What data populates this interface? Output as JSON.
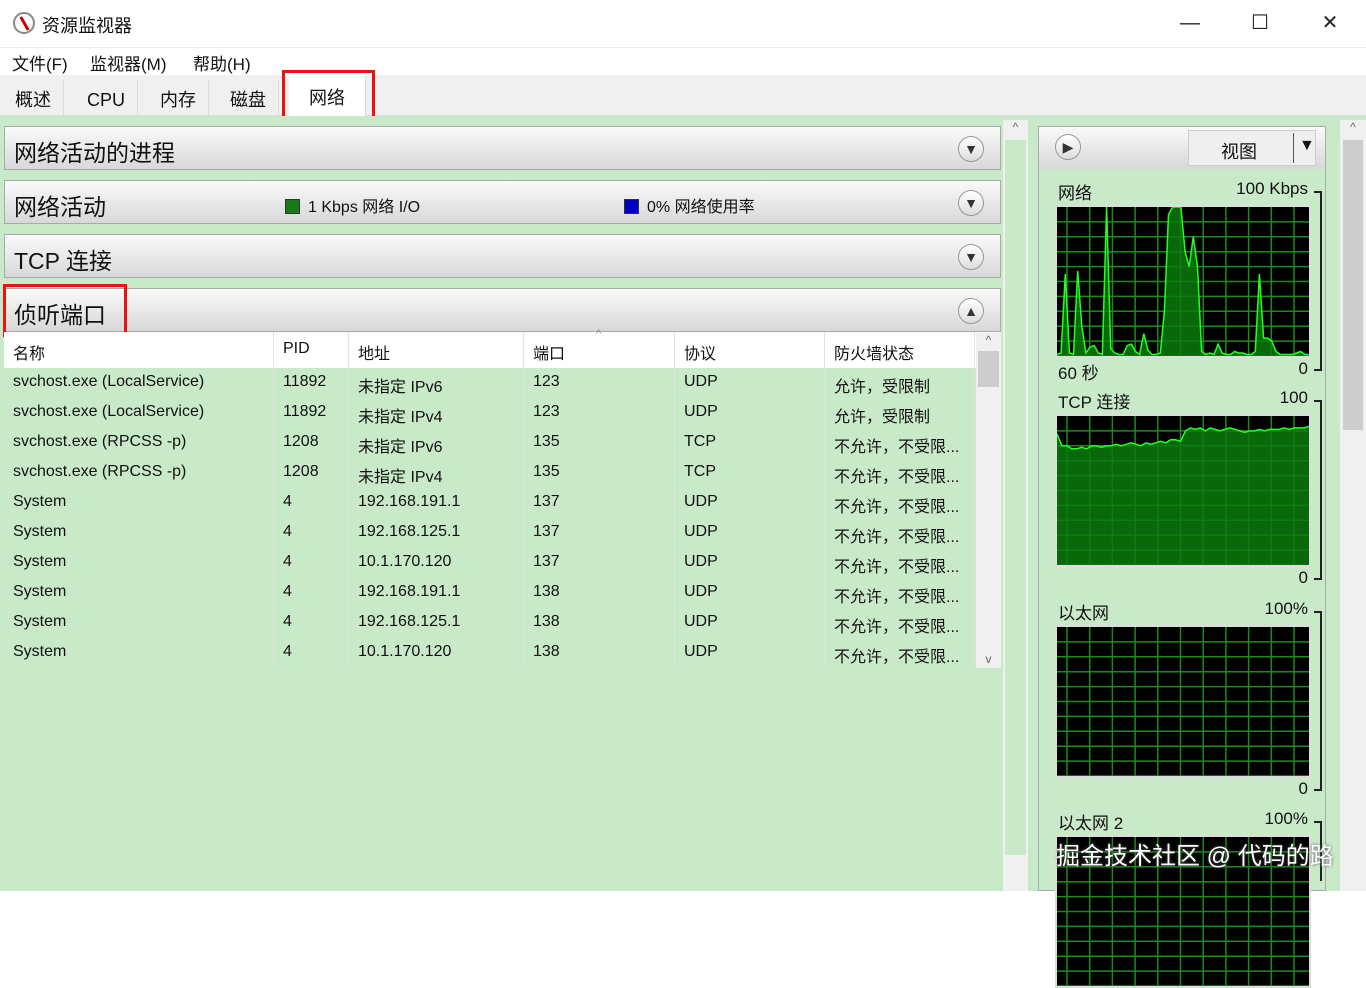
{
  "window": {
    "title": "资源监视器",
    "minimize": "—",
    "maximize": "☐",
    "close": "✕"
  },
  "menu": [
    "文件(F)",
    "监视器(M)",
    "帮助(H)"
  ],
  "tabs": [
    {
      "label": "概述"
    },
    {
      "label": "CPU"
    },
    {
      "label": "内存"
    },
    {
      "label": "磁盘"
    },
    {
      "label": "网络",
      "active": true
    }
  ],
  "sections": {
    "processes": {
      "title": "网络活动的进程"
    },
    "activity": {
      "title": "网络活动",
      "legend1": "1 Kbps 网络 I/O",
      "legend1_color": "#1a7a1a",
      "legend2": "0% 网络使用率",
      "legend2_color": "#0000c0"
    },
    "tcp": {
      "title": "TCP 连接"
    },
    "listening": {
      "title": "侦听端口"
    }
  },
  "table": {
    "columns": [
      "名称",
      "PID",
      "地址",
      "端口",
      "协议",
      "防火墙状态"
    ],
    "sort_column": "端口",
    "rows": [
      [
        "svchost.exe (LocalService)",
        "11892",
        "未指定 IPv6",
        "123",
        "UDP",
        "允许，受限制"
      ],
      [
        "svchost.exe (LocalService)",
        "11892",
        "未指定 IPv4",
        "123",
        "UDP",
        "允许，受限制"
      ],
      [
        "svchost.exe (RPCSS -p)",
        "1208",
        "未指定 IPv6",
        "135",
        "TCP",
        "不允许，不受限..."
      ],
      [
        "svchost.exe (RPCSS -p)",
        "1208",
        "未指定 IPv4",
        "135",
        "TCP",
        "不允许，不受限..."
      ],
      [
        "System",
        "4",
        "192.168.191.1",
        "137",
        "UDP",
        "不允许，不受限..."
      ],
      [
        "System",
        "4",
        "192.168.125.1",
        "137",
        "UDP",
        "不允许，不受限..."
      ],
      [
        "System",
        "4",
        "10.1.170.120",
        "137",
        "UDP",
        "不允许，不受限..."
      ],
      [
        "System",
        "4",
        "192.168.191.1",
        "138",
        "UDP",
        "不允许，不受限..."
      ],
      [
        "System",
        "4",
        "192.168.125.1",
        "138",
        "UDP",
        "不允许，不受限..."
      ],
      [
        "System",
        "4",
        "10.1.170.120",
        "138",
        "UDP",
        "不允许，不受限..."
      ]
    ]
  },
  "right": {
    "view_label": "视图",
    "graphs": [
      {
        "name": "网络",
        "max": "100 Kbps",
        "min": "0",
        "time": "60 秒",
        "samples": [
          1,
          2,
          55,
          2,
          1,
          57,
          20,
          2,
          6,
          7,
          2,
          1,
          100,
          5,
          2,
          1,
          1,
          7,
          8,
          3,
          1,
          15,
          4,
          1,
          1,
          2,
          30,
          95,
          100,
          100,
          100,
          70,
          60,
          80,
          60,
          3,
          1,
          2,
          1,
          8,
          2,
          1,
          1,
          3,
          2,
          2,
          1,
          1,
          3,
          55,
          12,
          12,
          10,
          3,
          1,
          1,
          1,
          1,
          2,
          3,
          1,
          1
        ]
      },
      {
        "name": "TCP 连接",
        "max": "100",
        "min": "0",
        "samples": [
          88,
          80,
          80,
          78,
          78,
          79,
          78,
          80,
          80,
          79,
          80,
          80,
          81,
          80,
          81,
          82,
          81,
          80,
          82,
          81,
          82,
          83,
          82,
          84,
          84,
          83,
          90,
          92,
          91,
          92,
          90,
          92,
          91,
          90,
          91,
          92,
          91,
          90,
          89,
          90,
          90,
          91,
          90,
          91,
          91,
          91,
          92,
          91,
          92,
          92,
          92,
          93
        ]
      },
      {
        "name": "以太网",
        "max": "100%",
        "min": "0",
        "samples": []
      },
      {
        "name": "以太网 2",
        "max": "100%",
        "samples": []
      }
    ]
  },
  "watermark": "掘金技术社区 @ 代码的路"
}
